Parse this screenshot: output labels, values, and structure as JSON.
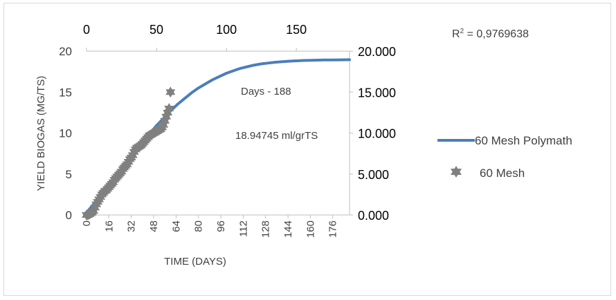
{
  "chart_data": {
    "type": "line",
    "title": "",
    "annotation": "R² = 0,9769638",
    "text_annotations": [
      "Days - 188",
      "18.94745 ml/grTS"
    ],
    "ylabel": "YIELD BIOGAS (MG/TS)",
    "xlabel": "TIME (DAYS)",
    "axes": {
      "x_bottom": {
        "range": [
          0,
          188
        ],
        "ticks": [
          0,
          16,
          32,
          48,
          64,
          80,
          96,
          112,
          128,
          144,
          160,
          176
        ],
        "tick_labels": [
          "0",
          "16",
          "32",
          "48",
          "64",
          "80",
          "96",
          "112",
          "128",
          "144",
          "160",
          "176"
        ]
      },
      "x_top": {
        "range": [
          0,
          188
        ],
        "ticks": [
          0,
          50,
          100,
          150
        ],
        "tick_labels": [
          "0",
          "50",
          "100",
          "150"
        ]
      },
      "y_left": {
        "range": [
          0,
          20
        ],
        "ticks": [
          0,
          5,
          10,
          15,
          20
        ],
        "tick_labels": [
          "0",
          "5",
          "10",
          "15",
          "20"
        ]
      },
      "y_right": {
        "range": [
          0,
          20
        ],
        "ticks": [
          0,
          5,
          10,
          15,
          20
        ],
        "tick_labels": [
          "0.000",
          "5.000",
          "10.000",
          "15.000",
          "20.000"
        ]
      }
    },
    "grid": false,
    "legend_position": "right",
    "series": [
      {
        "name": "60 Mesh Polymath",
        "kind": "line",
        "color": "#4a7ebb",
        "x": [
          0,
          5,
          10,
          15,
          20,
          25,
          30,
          35,
          40,
          45,
          50,
          55,
          60,
          65,
          70,
          75,
          80,
          85,
          90,
          95,
          100,
          105,
          110,
          115,
          120,
          125,
          130,
          135,
          140,
          145,
          150,
          155,
          160,
          165,
          170,
          175,
          180,
          188
        ],
        "y": [
          0.3,
          1.3,
          2.4,
          3.4,
          4.5,
          5.6,
          6.7,
          7.8,
          8.9,
          9.9,
          10.9,
          11.8,
          12.7,
          13.5,
          14.2,
          14.9,
          15.5,
          16.0,
          16.5,
          16.9,
          17.3,
          17.6,
          17.9,
          18.1,
          18.3,
          18.45,
          18.55,
          18.65,
          18.72,
          18.78,
          18.82,
          18.86,
          18.88,
          18.9,
          18.92,
          18.93,
          18.94,
          18.95
        ]
      },
      {
        "name": "60 Mesh",
        "kind": "scatter",
        "color": "#808080",
        "x": [
          0,
          1,
          2,
          3,
          4,
          5,
          6,
          7,
          8,
          9,
          10,
          11,
          12,
          13,
          14,
          15,
          16,
          17,
          18,
          19,
          20,
          21,
          22,
          23,
          24,
          25,
          26,
          27,
          28,
          29,
          30,
          31,
          32,
          33,
          34,
          35,
          36,
          37,
          38,
          39,
          40,
          41,
          42,
          43,
          44,
          45,
          46,
          47,
          48,
          49,
          50,
          51,
          52,
          53,
          54,
          55,
          56,
          57,
          58,
          59,
          60
        ],
        "y": [
          0.0,
          0.0,
          0.1,
          0.2,
          0.3,
          0.5,
          0.9,
          1.3,
          1.6,
          1.9,
          2.2,
          2.5,
          2.7,
          2.9,
          3.0,
          3.2,
          3.4,
          3.6,
          3.8,
          4.0,
          4.3,
          4.5,
          4.7,
          4.9,
          5.1,
          5.3,
          5.6,
          5.8,
          6.0,
          6.2,
          6.5,
          6.8,
          7.0,
          7.3,
          7.7,
          8.0,
          8.2,
          8.3,
          8.4,
          8.5,
          8.7,
          8.9,
          9.1,
          9.3,
          9.5,
          9.7,
          9.8,
          9.9,
          10.0,
          10.1,
          10.2,
          10.3,
          10.4,
          10.5,
          10.7,
          11.0,
          11.5,
          12.0,
          12.5,
          13.0,
          15.0
        ]
      }
    ]
  }
}
